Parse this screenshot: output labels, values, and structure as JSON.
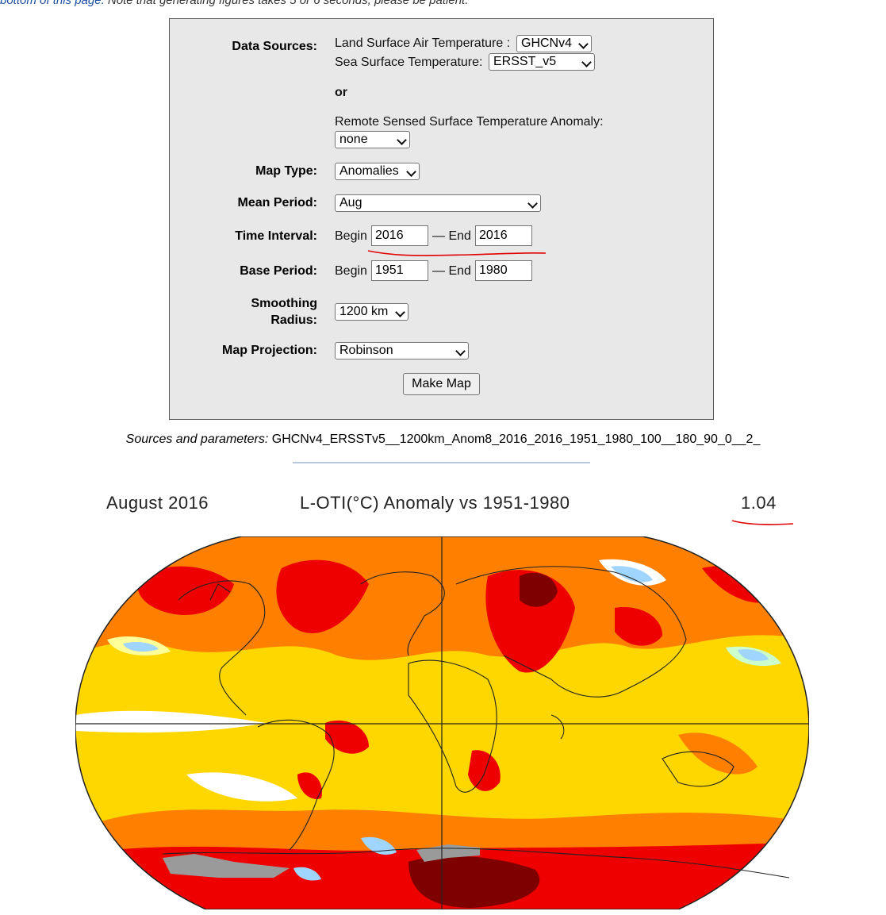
{
  "top_note": {
    "link": "bottom of this page.",
    "text": " Note that generating figures takes 5 or 6 seconds, please be patient."
  },
  "form": {
    "data_sources_label": "Data Sources:",
    "land_label": "Land Surface Air Temperature :",
    "land_value": "GHCNv4",
    "sea_label": "Sea Surface Temperature:",
    "sea_value": "ERSST_v5",
    "or_text": "or",
    "remote_label": "Remote Sensed Surface Temperature Anomaly:",
    "remote_value": "none",
    "map_type_label": "Map Type:",
    "map_type_value": "Anomalies",
    "mean_period_label": "Mean Period:",
    "mean_period_value": "Aug",
    "time_interval_label": "Time Interval:",
    "begin_text": "Begin",
    "end_text": "— End",
    "time_begin": "2016",
    "time_end": "2016",
    "base_period_label": "Base Period:",
    "base_begin": "1951",
    "base_end": "1980",
    "smoothing_label_1": "Smoothing",
    "smoothing_label_2": "Radius:",
    "smoothing_value": "1200 km",
    "projection_label": "Map Projection:",
    "projection_value": "Robinson",
    "make_map_label": "Make Map"
  },
  "sources": {
    "label": "Sources and parameters:",
    "value": " GHCNv4_ERSSTv5__1200km_Anom8_2016_2016_1951_1980_100__180_90_0__2_"
  },
  "map": {
    "period": "August 2016",
    "title": "L-OTI(°C) Anomaly vs 1951-1980",
    "global_mean": "1.04",
    "colors": {
      "dark_red": "#7f0000",
      "red": "#ee0000",
      "orange": "#ff7f00",
      "light_orange": "#ffb300",
      "yellow": "#ffd700",
      "pale_yellow": "#ffff99",
      "white": "#ffffff",
      "light_blue": "#9fd5ff",
      "pale_green": "#ccffcc",
      "gray": "#9a9a9a",
      "annotation_red": "#e00000"
    }
  }
}
